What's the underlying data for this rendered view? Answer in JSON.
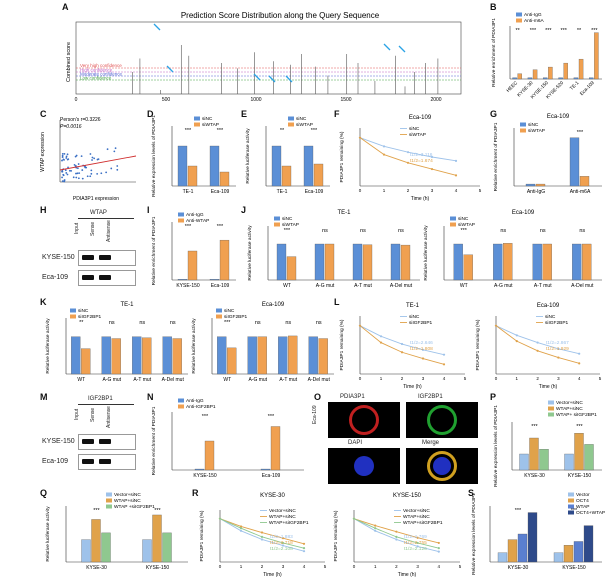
{
  "panels": {
    "A": {
      "letter": "A",
      "title": "Prediction Score Distribution along the Query Sequence",
      "ylabel": "Combined score",
      "xticks": [
        "0",
        "500",
        "1000",
        "1500",
        "2000"
      ],
      "legend": [
        "Very high confidence",
        "High confidence",
        "Moderate confidence",
        "Low confidence"
      ]
    },
    "B": {
      "letter": "B",
      "ylabel": "Relative enrichment of PDIA3P1",
      "legend": [
        "Anti-IgG",
        "Anti-m6A"
      ],
      "categories": [
        "HEEC",
        "KYSE-30",
        "KYSE-150",
        "KYSE-520",
        "TE-1",
        "Eca-109"
      ],
      "sig": [
        "**",
        "***",
        "***",
        "***",
        "**",
        "***"
      ],
      "yticks": [
        "0",
        "10",
        "20",
        "30",
        "40"
      ]
    },
    "C": {
      "letter": "C",
      "stat1": "Person's r=0.3226",
      "stat2": "P=0.0016",
      "ylabel": "WTAP expression",
      "xlabel": "PDIA3P1 expression",
      "yticks": [
        "0",
        "2000",
        "4000",
        "6000",
        "8000"
      ],
      "xticks": [
        "0",
        "2000",
        "4000",
        "6000",
        "8000",
        "10000"
      ]
    },
    "D": {
      "letter": "D",
      "ylabel": "Relative expression levels of PDIA3P1",
      "legend": [
        "siNC",
        "siWTAP"
      ],
      "categories": [
        "TE-1",
        "Eca-109"
      ],
      "sig": [
        "***",
        "***"
      ]
    },
    "E": {
      "letter": "E",
      "ylabel": "Relative luciferase activity",
      "legend": [
        "siNC",
        "siWTAP"
      ],
      "categories": [
        "TE-1",
        "Eca-109"
      ],
      "sig": [
        "**",
        "***"
      ]
    },
    "F": {
      "letter": "F",
      "title": "Eca-109",
      "ylabel": "PDIA3P1 remaining (%)",
      "xlabel": "Time (h)",
      "legend": [
        "siNC",
        "siWTAP"
      ],
      "t1": "t1/2=3.116",
      "t2": "t1/2=1.674"
    },
    "G": {
      "letter": "G",
      "title": "Eca-109",
      "ylabel": "Relative enrichment of PDIA3P1",
      "legend": [
        "siNC",
        "siWTAP"
      ],
      "categories": [
        "Anti-IgG",
        "Anti-m6A"
      ],
      "sig": [
        "***"
      ]
    },
    "H": {
      "letter": "H",
      "header": "WTAP",
      "rows": [
        "KYSE-150",
        "Eca-109"
      ],
      "cols": [
        "Input",
        "Sense",
        "Antisense"
      ]
    },
    "I": {
      "letter": "I",
      "ylabel": "Relative enrichment of PDIA3P1",
      "legend": [
        "Anti-IgG",
        "Anti-WTAP"
      ],
      "categories": [
        "KYSE-150",
        "Eca-109"
      ],
      "sig": [
        "***",
        "***"
      ]
    },
    "J": {
      "letter": "J",
      "t1": "TE-1",
      "t2": "Eca-109",
      "ylabel": "Relative luciferase activity",
      "legend": [
        "siNC",
        "siWTAP"
      ],
      "categories": [
        "WT",
        "A-G mut",
        "A-T mut",
        "A-Del mut"
      ],
      "sig": [
        "***",
        "ns",
        "ns",
        "ns"
      ]
    },
    "K": {
      "letter": "K",
      "t1": "TE-1",
      "t2": "Eca-109",
      "ylabel": "Relative luciferase activity",
      "legend": [
        "siNC",
        "siIGF2BP1"
      ],
      "categories": [
        "WT",
        "A-G mut",
        "A-T mut",
        "A-Del mut"
      ],
      "sig": [
        "**",
        "ns",
        "ns",
        "ns"
      ],
      "sig2": [
        "***",
        "ns",
        "ns",
        "ns"
      ]
    },
    "L": {
      "letter": "L",
      "t1": "TE-1",
      "t2": "Eca-109",
      "ylabel": "PDIA3P1 remaining (%)",
      "xlabel": "Time (h)",
      "legend": [
        "siNC",
        "siIGF2BP1"
      ],
      "a1": "t1/2=2.646",
      "a2": "t1/2=1.808",
      "b1": "t1/2=2.867",
      "b2": "t1/2=1.929"
    },
    "M": {
      "letter": "M",
      "header": "IGF2BP1",
      "rows": [
        "KYSE-150",
        "Eca-109"
      ],
      "cols": [
        "Input",
        "Sense",
        "Antisense"
      ]
    },
    "N": {
      "letter": "N",
      "ylabel": "Relative enrichment of PDIA3P1",
      "legend": [
        "Anti-IgG",
        "Anti-IGF2BP1"
      ],
      "categories": [
        "KYSE-150",
        "Eca-109"
      ],
      "sig": [
        "***",
        "***"
      ]
    },
    "O": {
      "letter": "O",
      "labels": [
        "PDIA3P1",
        "IGF2BP1",
        "DAPI",
        "Merge"
      ],
      "side": "Eca-109"
    },
    "P": {
      "letter": "P",
      "ylabel": "Relative expression levels of PDIA3P1",
      "legend": [
        "Vector+siNC",
        "WTAP+siNC",
        "WTAP+ siIGF2BP1"
      ],
      "categories": [
        "KYSE-30",
        "KYSE-150"
      ]
    },
    "Q": {
      "letter": "Q",
      "ylabel": "Relative luciferase activity",
      "legend": [
        "Vector+siNC",
        "WTAP+siNC",
        "WTAP +siIGF2BP1"
      ],
      "categories": [
        "KYSE-30",
        "KYSE-150"
      ]
    },
    "R": {
      "letter": "R",
      "t1": "KYSE-30",
      "t2": "KYSE-150",
      "ylabel": "PDIA3P1 remaining (%)",
      "xlabel": "Time (h)",
      "legend": [
        "Vector+siNC",
        "WTAP+siNC",
        "WTAP+siIGF2BP1"
      ],
      "a": [
        "t1/2=1.883",
        "t1/2=2.718",
        "t1/2=2.108"
      ],
      "b": [
        "t1/2=1.769",
        "t1/2=2.755",
        "t1/2=2.126"
      ]
    },
    "S": {
      "letter": "S",
      "ylabel": "Relative expression levels of PDIA3P1",
      "legend": [
        "Vector",
        "OCT4",
        "WTAP",
        "OCT4+WTAP"
      ],
      "categories": [
        "KYSE-30",
        "KYSE-150"
      ]
    }
  },
  "chart_data": [
    {
      "type": "bar",
      "categories": [
        "HEEC",
        "KYSE-30",
        "KYSE-150",
        "KYSE-520",
        "TE-1",
        "Eca-109"
      ],
      "series": [
        {
          "name": "Anti-IgG",
          "values": [
            1,
            1,
            1,
            1,
            1,
            1
          ]
        },
        {
          "name": "Anti-m6A",
          "values": [
            4,
            7,
            9,
            12,
            15,
            35
          ]
        }
      ],
      "ylim": [
        0,
        40
      ]
    },
    {
      "type": "bar",
      "categories": [
        "TE-1",
        "Eca-109"
      ],
      "series": [
        {
          "name": "siNC",
          "values": [
            1,
            1
          ]
        },
        {
          "name": "siWTAP",
          "values": [
            0.5,
            0.35
          ]
        }
      ],
      "ylim": [
        0,
        1.5
      ]
    },
    {
      "type": "bar",
      "categories": [
        "TE-1",
        "Eca-109"
      ],
      "series": [
        {
          "name": "siNC",
          "values": [
            1,
            1
          ]
        },
        {
          "name": "siWTAP",
          "values": [
            0.5,
            0.55
          ]
        }
      ],
      "ylim": [
        0,
        1.5
      ]
    },
    {
      "type": "line",
      "x": [
        0,
        1,
        2,
        3,
        4
      ],
      "series": [
        {
          "name": "siNC",
          "values": [
            100,
            82,
            70,
            60,
            52
          ]
        },
        {
          "name": "siWTAP",
          "values": [
            100,
            65,
            48,
            35,
            22
          ]
        }
      ],
      "ylim": [
        0,
        120
      ]
    },
    {
      "type": "bar",
      "categories": [
        "Anti-IgG",
        "Anti-m6A"
      ],
      "series": [
        {
          "name": "siNC",
          "values": [
            1,
            25
          ]
        },
        {
          "name": "siWTAP",
          "values": [
            1,
            5
          ]
        }
      ],
      "ylim": [
        0,
        30
      ]
    },
    {
      "type": "bar",
      "categories": [
        "KYSE-150",
        "Eca-109"
      ],
      "series": [
        {
          "name": "Anti-IgG",
          "values": [
            1,
            1
          ]
        },
        {
          "name": "Anti-WTAP",
          "values": [
            40,
            55
          ]
        }
      ],
      "ylim": [
        0,
        80
      ]
    },
    {
      "type": "bar",
      "categories": [
        "WT",
        "A-G mut",
        "A-T mut",
        "A-Del mut"
      ],
      "series": [
        {
          "name": "siNC",
          "values": [
            1,
            1,
            1,
            1
          ]
        },
        {
          "name": "siWTAP",
          "values": [
            0.65,
            1,
            0.98,
            0.97
          ]
        }
      ],
      "ylim": [
        0,
        1.5
      ]
    },
    {
      "type": "bar",
      "categories": [
        "WT",
        "A-G mut",
        "A-T mut",
        "A-Del mut"
      ],
      "series": [
        {
          "name": "siNC",
          "values": [
            1,
            1,
            1,
            1
          ]
        },
        {
          "name": "siWTAP",
          "values": [
            0.7,
            1.02,
            1,
            1
          ]
        }
      ],
      "ylim": [
        0,
        1.5
      ]
    },
    {
      "type": "bar",
      "categories": [
        "WT",
        "A-G mut",
        "A-T mut",
        "A-Del mut"
      ],
      "series": [
        {
          "name": "siNC",
          "values": [
            1,
            1,
            1,
            1
          ]
        },
        {
          "name": "siIGF2BP1",
          "values": [
            0.68,
            0.95,
            0.97,
            0.95
          ]
        }
      ],
      "ylim": [
        0,
        1.5
      ]
    },
    {
      "type": "bar",
      "categories": [
        "WT",
        "A-G mut",
        "A-T mut",
        "A-Del mut"
      ],
      "series": [
        {
          "name": "siNC",
          "values": [
            1,
            1,
            1,
            1
          ]
        },
        {
          "name": "siIGF2BP1",
          "values": [
            0.7,
            1,
            1.02,
            0.95
          ]
        }
      ],
      "ylim": [
        0,
        1.5
      ]
    },
    {
      "type": "line",
      "x": [
        0,
        1,
        2,
        3,
        4
      ],
      "series": [
        {
          "name": "siNC",
          "values": [
            100,
            78,
            62,
            50,
            40
          ]
        },
        {
          "name": "siIGF2BP1",
          "values": [
            100,
            65,
            45,
            32,
            20
          ]
        }
      ],
      "ylim": [
        0,
        120
      ]
    },
    {
      "type": "line",
      "x": [
        0,
        1,
        2,
        3,
        4
      ],
      "series": [
        {
          "name": "siNC",
          "values": [
            100,
            80,
            65,
            52,
            42
          ]
        },
        {
          "name": "siIGF2BP1",
          "values": [
            100,
            68,
            48,
            34,
            22
          ]
        }
      ],
      "ylim": [
        0,
        120
      ]
    },
    {
      "type": "bar",
      "categories": [
        "KYSE-150",
        "Eca-109"
      ],
      "series": [
        {
          "name": "Anti-IgG",
          "values": [
            1,
            1
          ]
        },
        {
          "name": "Anti-IGF2BP1",
          "values": [
            30,
            45
          ]
        }
      ],
      "ylim": [
        0,
        60
      ]
    },
    {
      "type": "bar",
      "categories": [
        "KYSE-30",
        "KYSE-150"
      ],
      "series": [
        {
          "name": "Vector+siNC",
          "values": [
            1,
            1
          ]
        },
        {
          "name": "WTAP+siNC",
          "values": [
            2,
            2.3
          ]
        },
        {
          "name": "WTAP+ siIGF2BP1",
          "values": [
            1.3,
            1.6
          ]
        }
      ],
      "ylim": [
        0,
        3
      ]
    },
    {
      "type": "bar",
      "categories": [
        "KYSE-30",
        "KYSE-150"
      ],
      "series": [
        {
          "name": "Vector+siNC",
          "values": [
            1,
            1
          ]
        },
        {
          "name": "WTAP+siNC",
          "values": [
            1.9,
            2.1
          ]
        },
        {
          "name": "WTAP +siIGF2BP1",
          "values": [
            1.3,
            1.3
          ]
        }
      ],
      "ylim": [
        0,
        2.5
      ]
    },
    {
      "type": "line",
      "x": [
        0,
        1,
        2,
        3,
        4
      ],
      "series": [
        {
          "name": "Vector+siNC",
          "values": [
            100,
            72,
            52,
            38,
            25
          ]
        },
        {
          "name": "WTAP+siNC",
          "values": [
            100,
            82,
            68,
            55,
            42
          ]
        },
        {
          "name": "WTAP+siIGF2BP1",
          "values": [
            100,
            78,
            58,
            44,
            32
          ]
        }
      ],
      "ylim": [
        0,
        120
      ]
    },
    {
      "type": "line",
      "x": [
        0,
        1,
        2,
        3,
        4
      ],
      "series": [
        {
          "name": "Vector+siNC",
          "values": [
            100,
            72,
            52,
            36,
            24
          ]
        },
        {
          "name": "WTAP+siNC",
          "values": [
            100,
            84,
            70,
            56,
            44
          ]
        },
        {
          "name": "WTAP+siIGF2BP1",
          "values": [
            100,
            78,
            58,
            44,
            32
          ]
        }
      ],
      "ylim": [
        0,
        120
      ]
    },
    {
      "type": "bar",
      "categories": [
        "KYSE-30",
        "KYSE-150"
      ],
      "series": [
        {
          "name": "Vector",
          "values": [
            1,
            1
          ]
        },
        {
          "name": "OCT4",
          "values": [
            2.4,
            1.8
          ]
        },
        {
          "name": "WTAP",
          "values": [
            3,
            2.2
          ]
        },
        {
          "name": "OCT4+WTAP",
          "values": [
            5.3,
            3.9
          ]
        }
      ],
      "ylim": [
        0,
        6
      ]
    }
  ]
}
